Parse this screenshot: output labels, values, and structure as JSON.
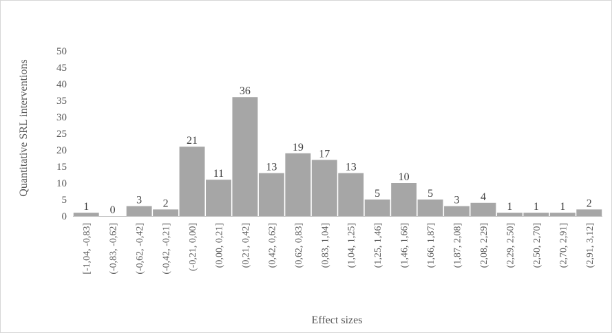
{
  "chart_data": {
    "type": "bar",
    "title": "",
    "xlabel": "Effect sizes",
    "ylabel": "Quantitative SRL interventions",
    "ylim": [
      0,
      50
    ],
    "yticks": [
      0,
      5,
      10,
      15,
      20,
      25,
      30,
      35,
      40,
      45,
      50
    ],
    "grid": false,
    "legend": "none",
    "bar_color": "#a6a6a6",
    "categories": [
      "[-1,04, -0,83]",
      "(-0,83, -0,62]",
      "(-0,62, -0,42]",
      "(-0,42, -0,21]",
      "(-0,21, 0,00]",
      "(0,00, 0,21]",
      "(0,21, 0,42]",
      "(0,42, 0,62]",
      "(0,62, 0,83]",
      "(0,83, 1,04]",
      "(1,04, 1,25]",
      "(1,25, 1,46]",
      "(1,46, 1,66]",
      "(1,66, 1,87]",
      "(1,87, 2,08]",
      "(2,08, 2,29]",
      "(2,29, 2,50]",
      "(2,50, 2,70]",
      "(2,70, 2,91]",
      "(2,91, 3,12]"
    ],
    "values": [
      1,
      0,
      3,
      2,
      21,
      11,
      36,
      13,
      19,
      17,
      13,
      5,
      10,
      5,
      3,
      4,
      1,
      1,
      1,
      2
    ]
  }
}
